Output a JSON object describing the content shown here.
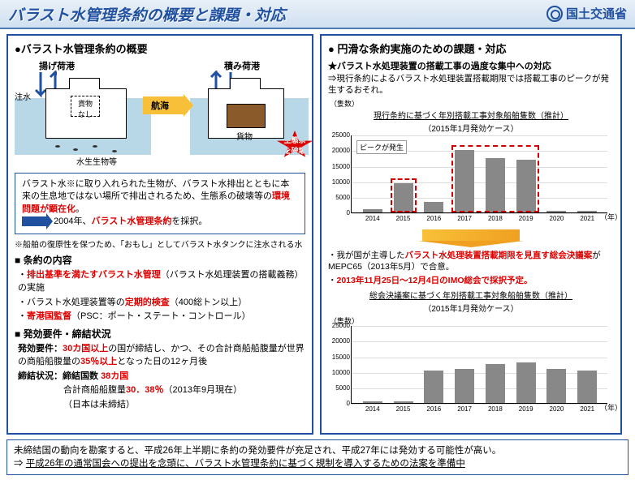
{
  "header": {
    "title": "バラスト水管理条約の概要と課題・対応",
    "ministry": "国土交通省"
  },
  "left": {
    "title": "●バラスト水管理条約の概要",
    "diagram": {
      "port1": "揚げ荷港",
      "port2": "積み荷港",
      "inject": "注水",
      "cargo_none": "貨物\nなし",
      "cargo": "貨物",
      "organisms": "水生生物等",
      "nav": "航海",
      "damage": "生態系\nを破壊"
    },
    "env_box": {
      "text1": "バラスト水※に取り入れられた生物が、バラスト水排出とともに本来の生息地ではない場所で排出されるため、生態系の破壊等の",
      "red1": "環境問題が顕在化",
      "period": "。",
      "year": "2004年、",
      "red2": "バラスト水管理条約",
      "adopt": "を採択。"
    },
    "note": "※船舶の復原性を保つため、「おもし」としてバラスト水タンクに注水される水",
    "content_title": "■ 条約の内容",
    "content_items": {
      "i1a": "・",
      "i1b": "排出基準を満たすバラスト水管理",
      "i1c": "（バラスト水処理装置の搭載義務）の実施",
      "i2a": "・バラスト水処理装置等の",
      "i2b": "定期的検査",
      "i2c": "（400総トン以上）",
      "i3a": "・",
      "i3b": "寄港国監督",
      "i3c": "（PSC：ポート・ステート・コントロール）"
    },
    "status_title": "■ 発効要件・締結状況",
    "status": {
      "r1a": "発効要件：",
      "r1b": "30カ国以上",
      "r1c": "の国が締結し、かつ、その合計商船船腹量が世界の商船船腹量の",
      "r1d": "35％以上",
      "r1e": "となった日の12ヶ月後",
      "r2a": "締結状況：締結国数 ",
      "r2b": "38カ国",
      "r3a": "合計商船船腹量",
      "r3b": "30．38％",
      "r3c": "（2013年9月現在）",
      "r4": "（日本は未締結）"
    }
  },
  "right": {
    "title": "● 円滑な条約実施のための課題・対応",
    "star": "★バラスト水処理装置の搭載工事の過度な集中への対応",
    "arrow1": "⇒現行条約によるバラスト水処理装置搭載期限では搭載工事のピークが発生するおそれ。",
    "chart1": {
      "unit": "（隻数）",
      "title": "現行条約に基づく年別搭載工事対象船舶隻数（推計）",
      "sub": "（2015年1月発効ケース）",
      "peak": "ピークが発生",
      "years": [
        "2014",
        "2015",
        "2016",
        "2017",
        "2018",
        "2019",
        "2020",
        "2021"
      ],
      "values": [
        1000,
        9500,
        3500,
        20000,
        17500,
        17000,
        500,
        500
      ],
      "ymax": 25000,
      "yticks": [
        0,
        5000,
        10000,
        15000,
        20000,
        25000
      ],
      "xlabel": "（年）",
      "bar_color": "#888888",
      "dashed_color": "#d00000"
    },
    "mid1a": "・我が国が主導した",
    "mid1b": "バラスト水処理装置搭載期限を見直す総会決議案",
    "mid1c": "がMEPC65（2013年5月）で合意。",
    "mid2a": "・",
    "mid2b": "2013年11月25日～12月4日のIMO総会で採択予定。",
    "chart2": {
      "unit": "（隻数）",
      "title": "総会決議案に基づく年別搭載工事対象船舶隻数（推計）",
      "sub": "（2015年1月発効ケース）",
      "years": [
        "2014",
        "2015",
        "2016",
        "2017",
        "2018",
        "2019",
        "2020",
        "2021"
      ],
      "values": [
        500,
        500,
        10500,
        11000,
        12500,
        13000,
        11000,
        10500
      ],
      "ymax": 25000,
      "yticks": [
        0,
        5000,
        10000,
        15000,
        20000,
        25000
      ],
      "xlabel": "（年）",
      "bar_color": "#888888"
    }
  },
  "footer": {
    "line1": "未締結国の動向を勘案すると、平成26年上半期に条約の発効要件が充足され、平成27年には発効する可能性が高い。",
    "line2a": "⇒ ",
    "line2b": "平成26年の通常国会への提出を念頭に、バラスト水管理条約に基づく規制を導入するための法案を準備中"
  }
}
